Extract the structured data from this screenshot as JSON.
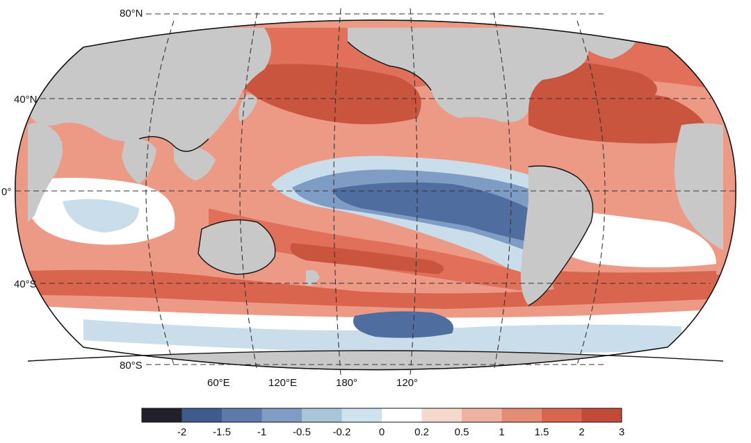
{
  "map": {
    "projection": "Robinson",
    "central_longitude": "180",
    "land_color": "#c8c8c8",
    "ocean_fill_colors": {
      "strong_warm": "#c9553f",
      "warm": "#e0705a",
      "mild_warm": "#ec9a86",
      "neutral": "#ffffff",
      "mild_cool": "#c9deea",
      "cool": "#7f9dc4",
      "strong_cool": "#4f6d9e"
    },
    "lat_labels": [
      "80°N",
      "40°N",
      "0°",
      "40°S",
      "80°S"
    ],
    "lon_labels": [
      "60°E",
      "120°E",
      "180°",
      "120°"
    ]
  },
  "colorbar": {
    "segment_colors": [
      "#22202a",
      "#3f5b8e",
      "#5d7aab",
      "#7f9cc4",
      "#a9c6d7",
      "#cfe3ee",
      "#ffffff",
      "#f6d8cc",
      "#eeb3a0",
      "#e58c75",
      "#d9654e",
      "#c24a37"
    ],
    "tick_labels": [
      "-2",
      "-1.5",
      "-1",
      "-0.5",
      "-0.2",
      "0",
      "0.2",
      "0.5",
      "1",
      "1.5",
      "2",
      "3"
    ]
  }
}
